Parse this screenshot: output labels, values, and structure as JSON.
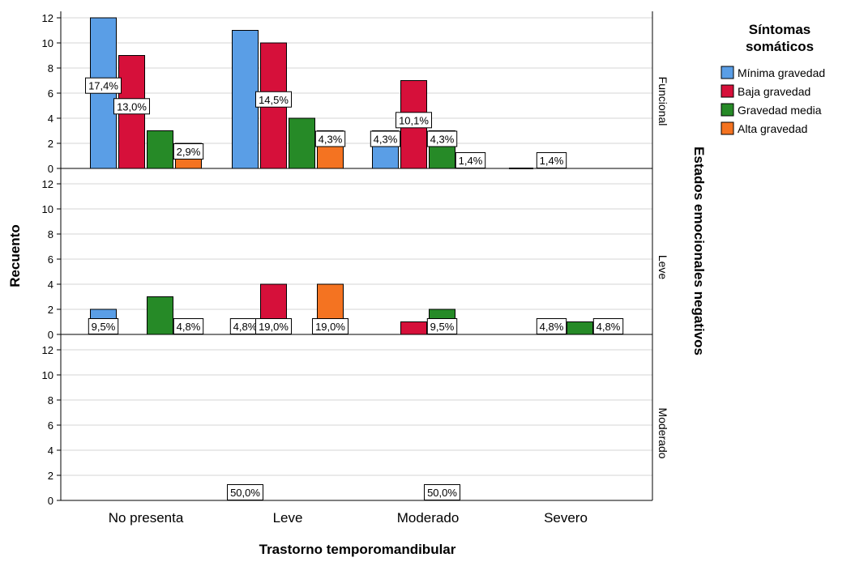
{
  "chart_data": {
    "type": "bar",
    "xlabel": "Trastorno temporomandibular",
    "ylabel": "Recuento",
    "ylim": [
      0,
      12
    ],
    "yticks": [
      0,
      2,
      4,
      6,
      8,
      10,
      12
    ],
    "grid": true,
    "categories": [
      "No presenta",
      "Leve",
      "Moderado",
      "Severo"
    ],
    "facet_title": "Estados emocionales negativos",
    "legend": {
      "title_line1": "Síntomas",
      "title_line2": "somáticos",
      "placement": "right"
    },
    "series": [
      {
        "name": "Mínima gravedad",
        "color": "#5a9ee6"
      },
      {
        "name": "Baja gravedad",
        "color": "#d6103a"
      },
      {
        "name": "Gravedad media",
        "color": "#268a27"
      },
      {
        "name": "Alta gravedad",
        "color": "#f47321"
      }
    ],
    "panels": [
      {
        "label": "Funcional",
        "values": [
          [
            12,
            11,
            3,
            0
          ],
          [
            9,
            10,
            7,
            0
          ],
          [
            3,
            4,
            3,
            0
          ],
          [
            2,
            3,
            0,
            0
          ]
        ],
        "labels": [
          {
            "cat": 0,
            "series": 0,
            "text": "17,4%"
          },
          {
            "cat": 0,
            "series": 1,
            "text": "13,0%"
          },
          {
            "cat": 0,
            "series": 3,
            "text": "2,9%"
          },
          {
            "cat": 1,
            "series": 1,
            "text": "14,5%"
          },
          {
            "cat": 1,
            "series": 3,
            "text": "4,3%"
          },
          {
            "cat": 2,
            "series": 0,
            "text": "4,3%"
          },
          {
            "cat": 2,
            "series": 1,
            "text": "10,1%"
          },
          {
            "cat": 2,
            "series": 2,
            "text": "4,3%"
          },
          {
            "cat": 2,
            "series": 3,
            "text": "1,4%"
          },
          {
            "cat": 3,
            "series": 1,
            "text": "1,4%"
          }
        ]
      },
      {
        "label": "Leve",
        "values": [
          [
            2,
            0,
            0,
            0
          ],
          [
            0,
            4,
            1,
            0
          ],
          [
            3,
            0,
            2,
            1
          ],
          [
            0,
            4,
            0,
            0
          ]
        ],
        "labels": [
          {
            "cat": 0,
            "series": 0,
            "text": "9,5%"
          },
          {
            "cat": 0,
            "series": 3,
            "text": "4,8%"
          },
          {
            "cat": 1,
            "series": 0,
            "text": "4,8%"
          },
          {
            "cat": 1,
            "series": 1,
            "text": "19,0%"
          },
          {
            "cat": 1,
            "series": 3,
            "text": "19,0%"
          },
          {
            "cat": 2,
            "series": 2,
            "text": "9,5%"
          },
          {
            "cat": 3,
            "series": 1,
            "text": "4,8%"
          },
          {
            "cat": 3,
            "series": 3,
            "text": "4,8%"
          }
        ]
      },
      {
        "label": "Moderado",
        "values": [
          [
            0,
            0,
            0,
            0
          ],
          [
            0,
            0,
            0,
            0
          ],
          [
            0,
            0,
            0,
            0
          ],
          [
            0,
            0,
            0,
            0
          ]
        ],
        "labels": [
          {
            "cat": 1,
            "series": 0,
            "text": "50,0%"
          },
          {
            "cat": 2,
            "series": 2,
            "text": "50,0%"
          }
        ]
      }
    ]
  }
}
